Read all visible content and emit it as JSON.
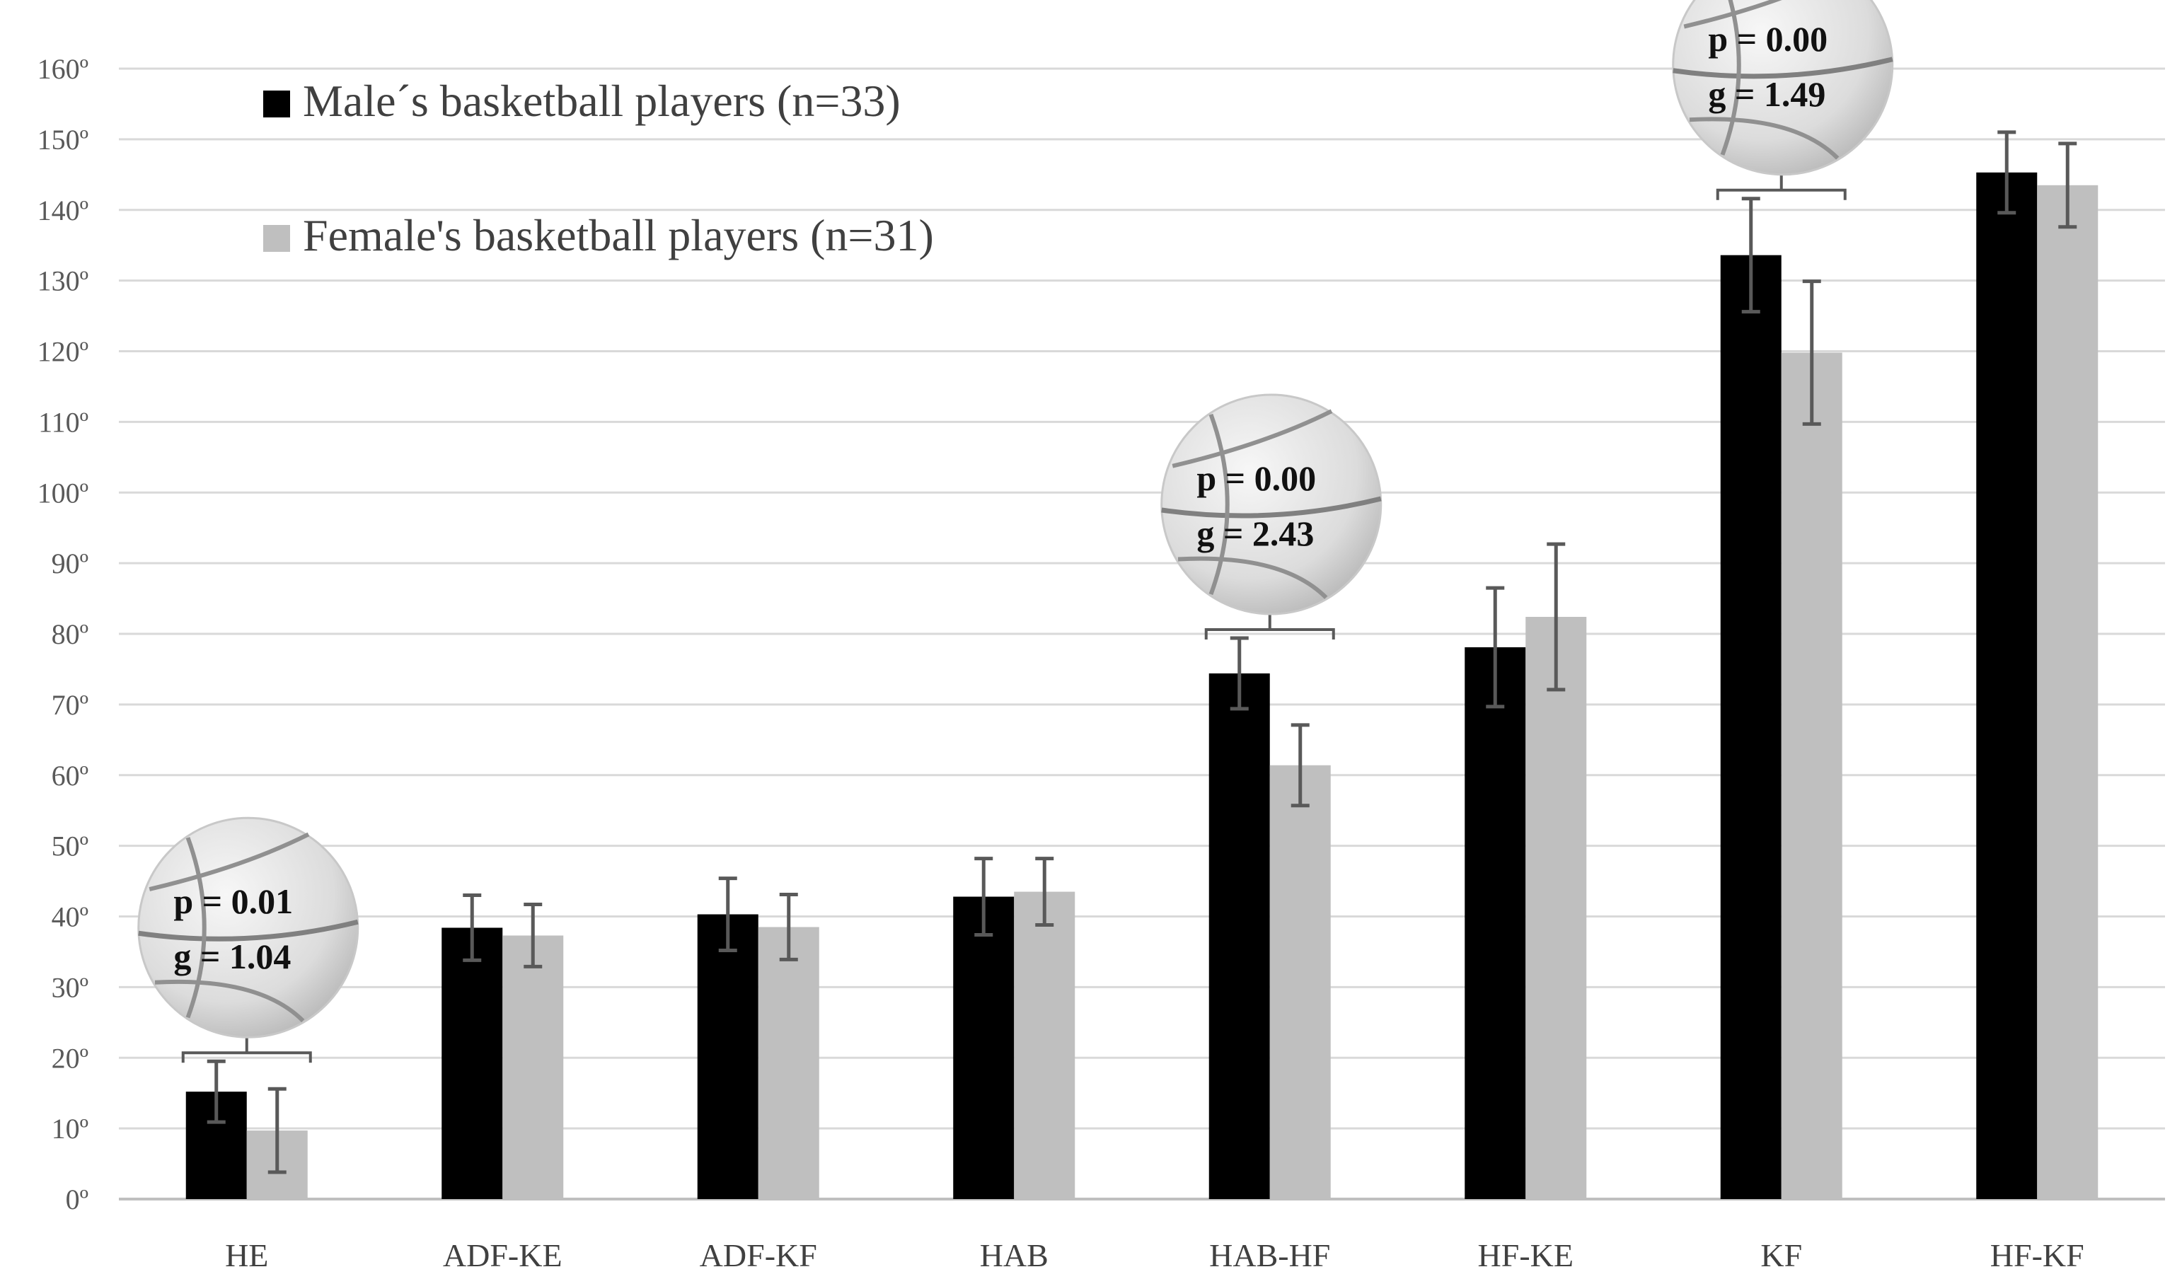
{
  "chart_data": {
    "type": "bar",
    "categories": [
      "HE",
      "ADF-KE",
      "ADF-KF",
      "HAB",
      "HAB-HF",
      "HF-KE",
      "KF",
      "HF-KF"
    ],
    "series": [
      {
        "name": "Male´s basketball players (n=33)",
        "color": "#000000",
        "values": [
          15.2,
          38.4,
          40.3,
          42.8,
          74.4,
          78.1,
          133.6,
          145.3
        ],
        "errors": [
          4.3,
          4.6,
          5.1,
          5.4,
          5.0,
          8.4,
          8.0,
          5.7
        ]
      },
      {
        "name": "Female's basketball players (n=31)",
        "color": "#bfbfbf",
        "values": [
          9.7,
          37.3,
          38.5,
          43.5,
          61.4,
          82.4,
          119.8,
          143.5
        ],
        "errors": [
          5.9,
          4.4,
          4.6,
          4.7,
          5.7,
          10.3,
          10.1,
          5.9
        ]
      }
    ],
    "yticks": [
      "0º",
      "10º",
      "20º",
      "30º",
      "40º",
      "50º",
      "60º",
      "70º",
      "80º",
      "90º",
      "100º",
      "110º",
      "120º",
      "130º",
      "140º",
      "150º",
      "160º"
    ],
    "ylim": [
      0,
      160
    ],
    "grid": true,
    "legend": "top-left",
    "annotations": [
      {
        "category": "HE",
        "p_text": "p = 0.01",
        "g_text": "g = 1.04"
      },
      {
        "category": "HAB-HF",
        "p_text": "p = 0.00",
        "g_text": "g = 2.43"
      },
      {
        "category": "KF",
        "p_text": "p = 0.00",
        "g_text": "g = 1.49"
      }
    ]
  }
}
